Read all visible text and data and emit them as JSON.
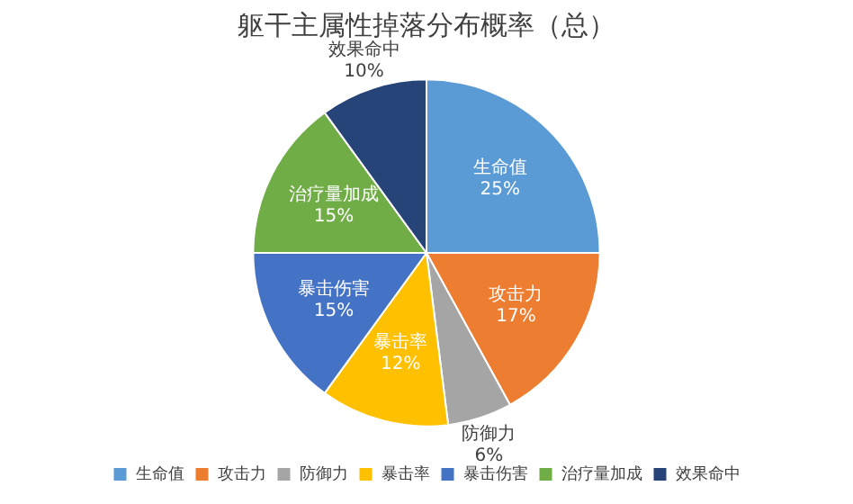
{
  "chart_data": {
    "type": "pie",
    "title": "躯干主属性掉落分布概率（总）",
    "categories": [
      "生命值",
      "攻击力",
      "防御力",
      "暴击率",
      "暴击伤害",
      "治疗量加成",
      "效果命中"
    ],
    "values": [
      25,
      17,
      6,
      12,
      15,
      15,
      10
    ],
    "value_labels": [
      "25%",
      "17%",
      "6%",
      "12%",
      "15%",
      "15%",
      "10%"
    ],
    "colors": [
      "#5b9bd5",
      "#ed7d31",
      "#a5a5a5",
      "#ffc000",
      "#4472c4",
      "#70ad47",
      "#264478"
    ],
    "legend": "bottom"
  }
}
